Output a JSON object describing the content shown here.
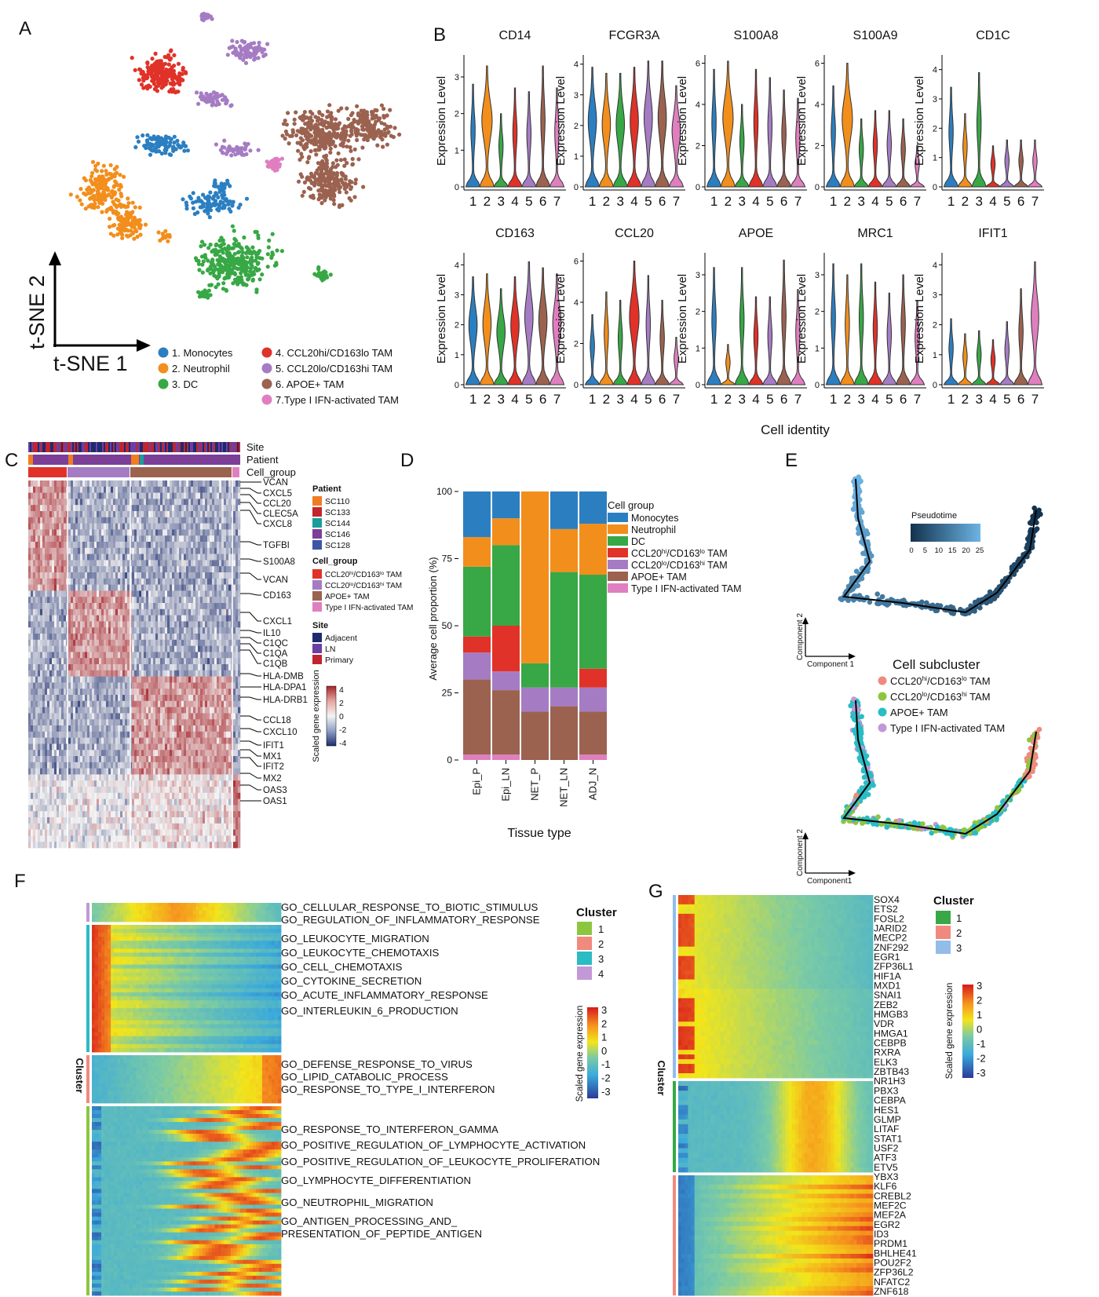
{
  "panel_letters": [
    "A",
    "B",
    "C",
    "D",
    "E",
    "F",
    "G"
  ],
  "panelA": {
    "x_axis_label": "t-SNE 1",
    "y_axis_label": "t-SNE 2",
    "legend": [
      {
        "label": "1. Monocytes",
        "color": "#2b7fc1"
      },
      {
        "label": "2. Neutrophil",
        "color": "#f28e1c"
      },
      {
        "label": "3. DC",
        "color": "#37a845"
      },
      {
        "label": "4. CCL20hi/CD163lo TAM",
        "label_main": "4. CCL20",
        "sup1": "hi",
        "mid": "/CD163",
        "sup2": "lo",
        "tail": " TAM",
        "color": "#e03228"
      },
      {
        "label": "5. CCL20lo/CD163hi TAM",
        "label_main": "5. CCL20",
        "sup1": "lo",
        "mid": "/CD163",
        "sup2": "hi",
        "tail": " TAM",
        "color": "#a57cc3"
      },
      {
        "label": "6. APOE+ TAM",
        "color": "#9b6250"
      },
      {
        "label": "7.Type I IFN-activated TAM",
        "color": "#df7fbf"
      }
    ]
  },
  "panelB": {
    "y_axis_label": "Expression Level",
    "x_axis_label": "Cell identity",
    "x_ticks": [
      "1",
      "2",
      "3",
      "4",
      "5",
      "6",
      "7"
    ],
    "violins": [
      {
        "gene": "CD14",
        "yticks": [
          0,
          1,
          2,
          3
        ],
        "ymax": 3.6,
        "maxs": [
          2.8,
          3.3,
          2.0,
          2.7,
          2.6,
          3.3,
          2.7
        ]
      },
      {
        "gene": "FCGR3A",
        "yticks": [
          0,
          1,
          2,
          3,
          4
        ],
        "ymax": 4.3,
        "maxs": [
          3.9,
          3.7,
          3.7,
          3.9,
          4.1,
          4.1,
          3.3
        ]
      },
      {
        "gene": "S100A8",
        "yticks": [
          0,
          2,
          4,
          6
        ],
        "ymax": 6.4,
        "maxs": [
          5.7,
          6.1,
          4.0,
          5.7,
          5.3,
          4.7,
          4.3
        ]
      },
      {
        "gene": "S100A9",
        "yticks": [
          0,
          2,
          4,
          6
        ],
        "ymax": 6.4,
        "maxs": [
          4.9,
          6.0,
          3.3,
          3.7,
          3.7,
          3.3,
          2.0
        ]
      },
      {
        "gene": "CD1C",
        "yticks": [
          0,
          1,
          2,
          3,
          4
        ],
        "ymax": 4.5,
        "maxs": [
          3.4,
          2.5,
          3.9,
          1.4,
          1.6,
          1.6,
          1.6
        ]
      },
      {
        "gene": "CD163",
        "yticks": [
          0,
          1,
          2,
          3,
          4
        ],
        "ymax": 4.4,
        "maxs": [
          3.6,
          3.7,
          3.2,
          3.6,
          4.1,
          3.9,
          3.7
        ]
      },
      {
        "gene": "CCL20",
        "yticks": [
          0,
          2,
          4,
          6
        ],
        "ymax": 6.4,
        "maxs": [
          3.4,
          4.5,
          4.1,
          6.0,
          5.3,
          4.1,
          2.3
        ]
      },
      {
        "gene": "APOE",
        "yticks": [
          0,
          1,
          2,
          3
        ],
        "ymax": 3.6,
        "maxs": [
          3.2,
          1.1,
          3.2,
          2.4,
          2.4,
          3.4,
          2.6
        ]
      },
      {
        "gene": "MRC1",
        "yticks": [
          0,
          1,
          2,
          3
        ],
        "ymax": 3.6,
        "maxs": [
          3.3,
          3.0,
          3.3,
          2.8,
          2.5,
          3.0,
          2.3
        ]
      },
      {
        "gene": "IFIT1",
        "yticks": [
          0,
          1,
          2,
          3,
          4
        ],
        "ymax": 4.4,
        "maxs": [
          2.2,
          1.7,
          1.8,
          1.5,
          2.1,
          3.2,
          4.1
        ]
      }
    ]
  },
  "panelC": {
    "track_labels": [
      "Site",
      "Patient",
      "Cell_group"
    ],
    "genes": [
      "VCAN",
      "CXCL5",
      "CCL20",
      "CLEC5A",
      "CXCL8",
      "TGFBI",
      "S100A8",
      "VCAN",
      "CD163",
      "CXCL1",
      "IL10",
      "C1QC",
      "C1QA",
      "C1QB",
      "HLA-DMB",
      "HLA-DPA1",
      "HLA-DRB1",
      "CCL18",
      "CXCL10",
      "IFIT1",
      "MX1",
      "IFIT2",
      "MX2",
      "OAS3",
      "OAS1"
    ],
    "legend_patient_title": "Patient",
    "patients": [
      {
        "label": "SC110",
        "color": "#f07d22"
      },
      {
        "label": "SC133",
        "color": "#c1272d"
      },
      {
        "label": "SC144",
        "color": "#1a9e9a"
      },
      {
        "label": "SC146",
        "color": "#7b3f97"
      },
      {
        "label": "SC128",
        "color": "#3b55a8"
      }
    ],
    "legend_cellgroup_title": "Cell_group",
    "cell_groups": [
      {
        "label": "CCL20hi/CD163lo TAM",
        "main": "CCL20",
        "sup1": "hi",
        "mid": "/CD163",
        "sup2": "lo",
        "tail": " TAM",
        "color": "#e03228"
      },
      {
        "label": "CCL20lo/CD163hi TAM",
        "main": "CCL20",
        "sup1": "lo",
        "mid": "/CD163",
        "sup2": "hi",
        "tail": " TAM",
        "color": "#a57cc3"
      },
      {
        "label": "APOE+ TAM",
        "color": "#9b6250"
      },
      {
        "label": "Type I IFN-activated TAM",
        "color": "#df7fbf"
      }
    ],
    "legend_site_title": "Site",
    "sites": [
      {
        "label": "Adjacent",
        "color": "#1f2a6e"
      },
      {
        "label": "LN",
        "color": "#6c3fa3"
      },
      {
        "label": "Primary",
        "color": "#c0252d"
      }
    ],
    "colorbar_label": "Scaled gene expression",
    "colorbar_ticks": [
      "4",
      "2",
      "0",
      "-2",
      "-4"
    ]
  },
  "panelD": {
    "chart_data": {
      "type": "bar",
      "stacked": true,
      "categories": [
        "Epi_P",
        "Epi_LN",
        "NET_P",
        "NET_LN",
        "ADJ_N"
      ],
      "ylabel": "Average cell proportion (%)",
      "xlabel": "Tissue type",
      "ylim": [
        0,
        100
      ],
      "yticks": [
        0,
        25,
        50,
        75,
        100
      ],
      "legend_title": "Cell group",
      "series": [
        {
          "name": "Type I IFN-activated TAM",
          "color": "#df7fbf",
          "values": [
            2,
            2,
            0,
            0,
            2
          ]
        },
        {
          "name": "APOE+ TAM",
          "color": "#9b6250",
          "values": [
            28,
            24,
            18,
            20,
            16
          ]
        },
        {
          "name": "CCL20lo/CD163hi TAM",
          "color": "#a57cc3",
          "values": [
            10,
            7,
            9,
            7,
            9
          ]
        },
        {
          "name": "CCL20hi/CD163lo TAM",
          "color": "#e03228",
          "values": [
            6,
            17,
            0,
            0,
            7
          ]
        },
        {
          "name": "DC",
          "color": "#37a845",
          "values": [
            26,
            30,
            9,
            43,
            35
          ]
        },
        {
          "name": "Neutrophil",
          "color": "#f28e1c",
          "values": [
            11,
            10,
            64,
            16,
            19
          ]
        },
        {
          "name": "Monocytes",
          "color": "#2b7fc1",
          "values": [
            17,
            10,
            0,
            14,
            12
          ]
        }
      ]
    },
    "legend": [
      {
        "label": "Monocytes",
        "color": "#2b7fc1"
      },
      {
        "label": "Neutrophil",
        "color": "#f28e1c"
      },
      {
        "label": "DC",
        "color": "#37a845"
      },
      {
        "label": "CCL20hi/CD163lo TAM",
        "main": "CCL20",
        "sup1": "hi",
        "mid": "/CD163",
        "sup2": "lo",
        "tail": " TAM",
        "color": "#e03228"
      },
      {
        "label": "CCL20lo/CD163hi TAM",
        "main": "CCL20",
        "sup1": "lo",
        "mid": "/CD163",
        "sup2": "hi",
        "tail": " TAM",
        "color": "#a57cc3"
      },
      {
        "label": "APOE+ TAM",
        "color": "#9b6250"
      },
      {
        "label": "Type I IFN-activated TAM",
        "color": "#df7fbf"
      }
    ]
  },
  "panelE": {
    "pseudotime_title": "Pseudotime",
    "pseudotime_ticks": [
      "0",
      "5",
      "10",
      "15",
      "20",
      "25"
    ],
    "x_axis_label": "Component 1",
    "y_axis_label": "Component 2",
    "subcluster_title": "Cell subcluster",
    "subclusters": [
      {
        "label": "CCL20hi/CD163lo TAM",
        "main": "CCL20",
        "sup1": "hi",
        "mid": "/CD163",
        "sup2": "lo",
        "tail": " TAM",
        "color": "#f08a7e"
      },
      {
        "label": "CCL20lo/CD163hi TAM",
        "main": "CCL20",
        "sup1": "lo",
        "mid": "/CD163",
        "sup2": "hi",
        "tail": " TAM",
        "color": "#8cc63f"
      },
      {
        "label": "APOE+ TAM",
        "color": "#2bbcc4"
      },
      {
        "label": "Type I IFN-activated TAM",
        "color": "#c398d6"
      }
    ],
    "x_axis_label_2": "Component1"
  },
  "panelF": {
    "side_label": "Cluster",
    "legend_title": "Cluster",
    "clusters": [
      {
        "label": "1",
        "color": "#8cc63f"
      },
      {
        "label": "2",
        "color": "#f08a7e"
      },
      {
        "label": "3",
        "color": "#2bbcc4"
      },
      {
        "label": "4",
        "color": "#c398d6"
      }
    ],
    "colorbar_label": "Scaled gene expression",
    "colorbar_ticks": [
      "3",
      "2",
      "1",
      "0",
      "-1",
      "-2",
      "-3"
    ],
    "go_terms": [
      "GO_CELLULAR_RESPONSE_TO_BIOTIC_STIMULUS",
      "GO_REGULATION_OF_INFLAMMATORY_RESPONSE",
      "GO_LEUKOCYTE_MIGRATION",
      "GO_LEUKOCYTE_CHEMOTAXIS",
      "GO_CELL_CHEMOTAXIS",
      "GO_CYTOKINE_SECRETION",
      "GO_ACUTE_INFLAMMATORY_RESPONSE",
      "GO_INTERLEUKIN_6_PRODUCTION",
      "GO_DEFENSE_RESPONSE_TO_VIRUS",
      "GO_LIPID_CATABOLIC_PROCESS",
      "GO_RESPONSE_TO_TYPE_I_INTERFERON",
      "GO_RESPONSE_TO_INTERFERON_GAMMA",
      "GO_POSITIVE_REGULATION_OF_LYMPHOCYTE_ACTIVATION",
      "GO_POSITIVE_REGULATION_OF_LEUKOCYTE_PROLIFERATION",
      "GO_LYMPHOCYTE_DIFFERENTIATION",
      "GO_NEUTROPHIL_MIGRATION",
      "GO_ANTIGEN_PROCESSING_AND_",
      "PRESENTATION_OF_PEPTIDE_ANTIGEN"
    ]
  },
  "panelG": {
    "side_label": "Cluster",
    "legend_title": "Cluster",
    "clusters": [
      {
        "label": "1",
        "color": "#37a845"
      },
      {
        "label": "2",
        "color": "#f08a7e"
      },
      {
        "label": "3",
        "color": "#93bde6"
      }
    ],
    "colorbar_label": "Scaled gene expression",
    "colorbar_ticks": [
      "3",
      "2",
      "1",
      "0",
      "-1",
      "-2",
      "-3"
    ],
    "genes": [
      "SOX4",
      "ETS2",
      "FOSL2",
      "JARID2",
      "MECP2",
      "ZNF292",
      "EGR1",
      "ZFP36L1",
      "HIF1A",
      "MXD1",
      "SNAI1",
      "ZEB2",
      "HMGB3",
      "VDR",
      "HMGA1",
      "CEBPB",
      "RXRA",
      "ELK3",
      "ZBTB43",
      "NR1H3",
      "PBX3",
      "CEBPA",
      "HES1",
      "GLMP",
      "LITAF",
      "STAT1",
      "USF2",
      "ATF3",
      "ETV5",
      "YBX3",
      "KLF6",
      "CREBL2",
      "MEF2C",
      "MEF2A",
      "EGR2",
      "ID3",
      "PRDM1",
      "BHLHE41",
      "POU2F2",
      "ZFP36L2",
      "NFATC2",
      "ZNF618"
    ]
  }
}
